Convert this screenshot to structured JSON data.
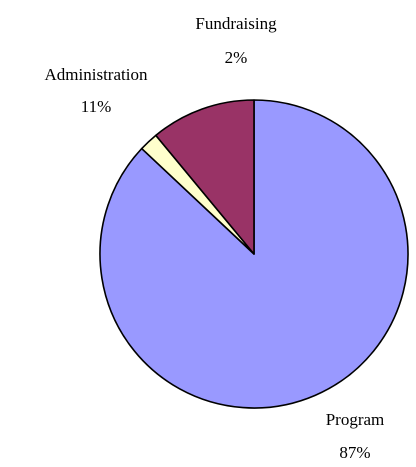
{
  "chart_data": {
    "type": "pie",
    "title": "",
    "slices": [
      {
        "label": "Program",
        "value_label": "87%",
        "value": 87,
        "color": "#9999ff"
      },
      {
        "label": "Fundraising",
        "value_label": "2%",
        "value": 2,
        "color": "#ffffcc"
      },
      {
        "label": "Administration",
        "value_label": "11%",
        "value": 11,
        "color": "#993366"
      }
    ],
    "start_angle_deg": 0,
    "direction": "clockwise",
    "outline_color": "#000000",
    "legend": "none"
  }
}
